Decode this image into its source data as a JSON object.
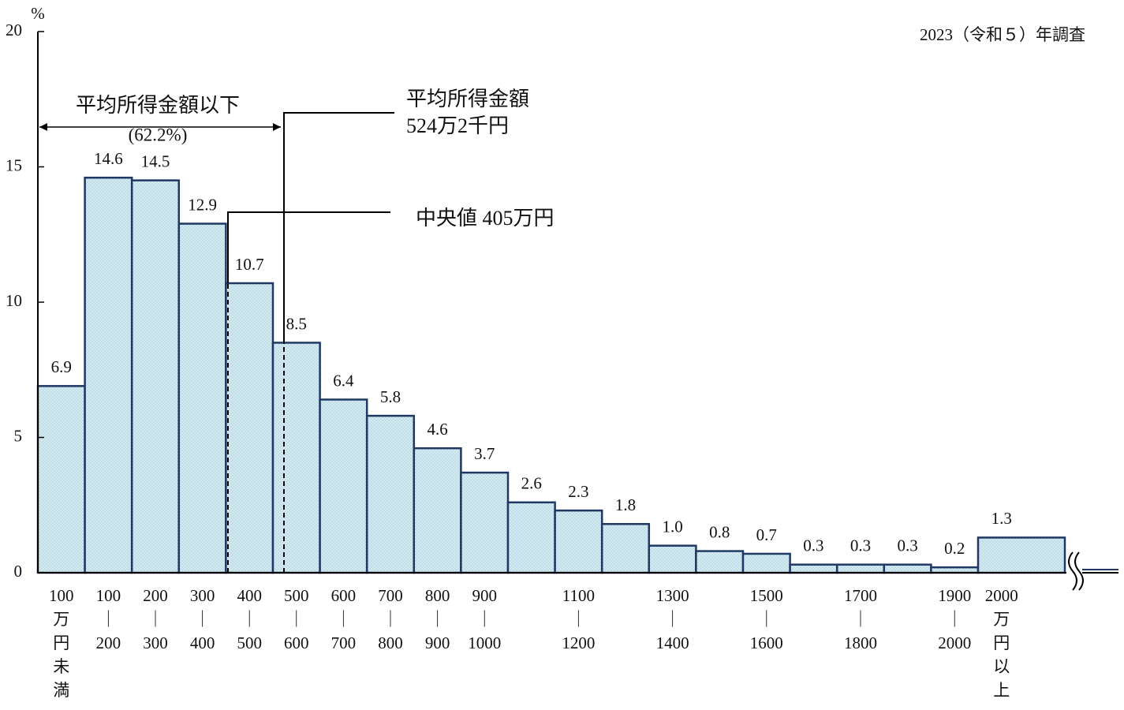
{
  "chart_data": {
    "type": "bar",
    "y_unit": "%",
    "note": "2023（令和５）年調査",
    "annotations": {
      "below_mean": "平均所得金額以下",
      "below_mean_share": "(62.2%)",
      "mean_title": "平均所得金額",
      "mean_value": "524万2千円",
      "median": "中央値 405万円"
    },
    "categories": [
      "100万円未満",
      "100｜200",
      "200｜300",
      "300｜400",
      "400｜500",
      "500｜600",
      "600｜700",
      "700｜800",
      "800｜900",
      "900｜1000",
      null,
      "1100｜1200",
      null,
      "1300｜1400",
      null,
      "1500｜1600",
      null,
      "1700｜1800",
      null,
      "1900｜2000",
      "2000万円以上"
    ],
    "values": [
      6.9,
      14.6,
      14.5,
      12.9,
      10.7,
      8.5,
      6.4,
      5.8,
      4.6,
      3.7,
      2.6,
      2.3,
      1.8,
      1.0,
      0.8,
      0.7,
      0.3,
      0.3,
      0.3,
      0.2,
      1.3
    ],
    "value_labels": [
      "6.9",
      "14.6",
      "14.5",
      "12.9",
      "10.7",
      "8.5",
      "6.4",
      "5.8",
      "4.6",
      "3.7",
      "2.6",
      "2.3",
      "1.8",
      "1.0",
      "0.8",
      "0.7",
      "0.3",
      "0.3",
      "0.3",
      "0.2",
      "1.3"
    ],
    "color": "#d4ebf2",
    "edge_color": "#1f3864",
    "ylim": [
      0,
      20
    ],
    "yticks": [
      0,
      5,
      10,
      15,
      20
    ],
    "grid": false
  }
}
